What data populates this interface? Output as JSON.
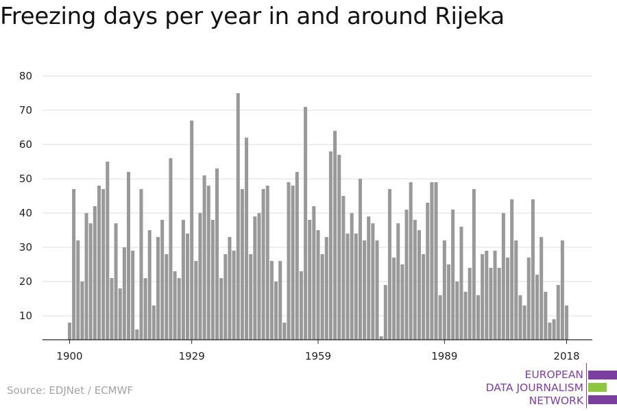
{
  "title": "Freezing days per year in and around Rijeka",
  "source": "Source: EDJNet / ECMWF",
  "logo": {
    "lines": [
      "EUROPEAN",
      "DATA JOURNALISM",
      "NETWORK"
    ],
    "colors": {
      "purple": "#7b3fa0",
      "green": "#8cc63f"
    }
  },
  "colors": {
    "bar": "#999999",
    "grid": "#dddddd",
    "axis": "#222222"
  },
  "chart_data": {
    "type": "bar",
    "title": "Freezing days per year in and around Rijeka",
    "xlabel": "",
    "ylabel": "",
    "ylim": [
      3,
      80
    ],
    "yticks": [
      10,
      20,
      30,
      40,
      50,
      60,
      70,
      80
    ],
    "xticks": [
      1900,
      1929,
      1959,
      1989,
      2018
    ],
    "grid": true,
    "x": [
      1900,
      1901,
      1902,
      1903,
      1904,
      1905,
      1906,
      1907,
      1908,
      1909,
      1910,
      1911,
      1912,
      1913,
      1914,
      1915,
      1916,
      1917,
      1918,
      1919,
      1920,
      1921,
      1922,
      1923,
      1924,
      1925,
      1926,
      1927,
      1928,
      1929,
      1930,
      1931,
      1932,
      1933,
      1934,
      1935,
      1936,
      1937,
      1938,
      1939,
      1940,
      1941,
      1942,
      1943,
      1944,
      1945,
      1946,
      1947,
      1948,
      1949,
      1950,
      1951,
      1952,
      1953,
      1954,
      1955,
      1956,
      1957,
      1958,
      1959,
      1960,
      1961,
      1962,
      1963,
      1964,
      1965,
      1966,
      1967,
      1968,
      1969,
      1970,
      1971,
      1972,
      1973,
      1974,
      1975,
      1976,
      1977,
      1978,
      1979,
      1980,
      1981,
      1982,
      1983,
      1984,
      1985,
      1986,
      1987,
      1988,
      1989,
      1990,
      1991,
      1992,
      1993,
      1994,
      1995,
      1996,
      1997,
      1998,
      1999,
      2000,
      2001,
      2002,
      2003,
      2004,
      2005,
      2006,
      2007,
      2008,
      2009,
      2010,
      2011,
      2012,
      2013,
      2014,
      2015,
      2016,
      2017,
      2018
    ],
    "values": [
      8,
      47,
      32,
      20,
      40,
      37,
      42,
      48,
      47,
      55,
      21,
      37,
      18,
      30,
      52,
      29,
      6,
      47,
      21,
      35,
      13,
      33,
      38,
      28,
      56,
      23,
      21,
      38,
      34,
      67,
      26,
      40,
      51,
      48,
      38,
      53,
      21,
      28,
      33,
      29,
      75,
      47,
      62,
      28,
      39,
      40,
      47,
      48,
      26,
      20,
      26,
      8,
      49,
      48,
      52,
      23,
      71,
      38,
      42,
      35,
      28,
      33,
      58,
      64,
      57,
      45,
      34,
      40,
      34,
      50,
      32,
      39,
      37,
      32,
      4,
      19,
      47,
      27,
      37,
      25,
      41,
      49,
      38,
      35,
      28,
      43,
      49,
      49,
      16,
      32,
      25,
      41,
      20,
      36,
      17,
      24,
      47,
      16,
      28,
      29,
      24,
      29,
      24,
      40,
      27,
      44,
      32,
      16,
      13,
      27,
      44,
      22,
      33,
      17,
      8,
      9,
      19,
      32,
      13
    ]
  }
}
